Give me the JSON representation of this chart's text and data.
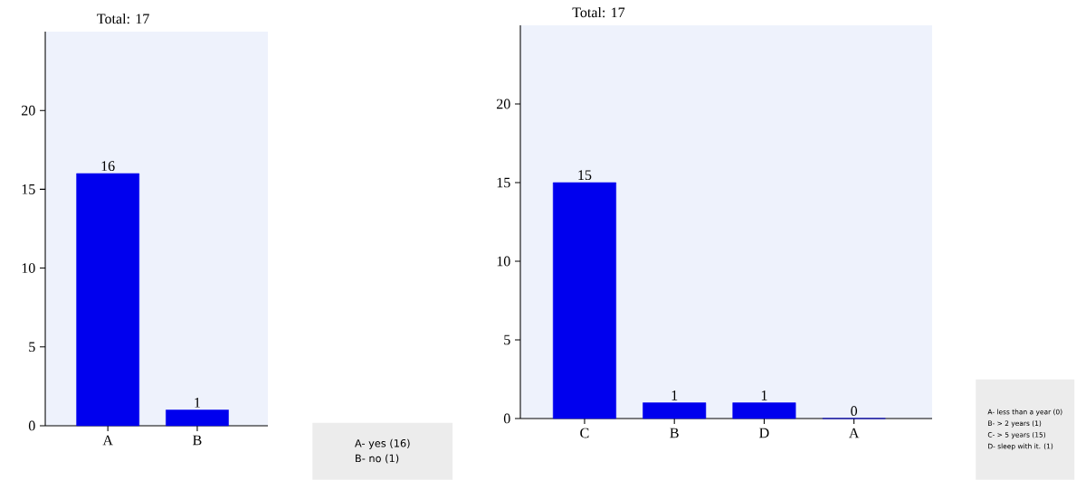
{
  "chart_data": [
    {
      "type": "bar",
      "title": "Total: 17",
      "categories": [
        "A",
        "B"
      ],
      "values": [
        16,
        1
      ],
      "color": "#0000ee",
      "ylim": [
        0,
        25
      ],
      "yticks": [
        0,
        5,
        10,
        15,
        20
      ],
      "data_labels": true,
      "annotations": [
        "A- yes (16)",
        "B- no (1)"
      ]
    },
    {
      "type": "bar",
      "title": "Total: 17",
      "categories": [
        "C",
        "B",
        "D",
        "A"
      ],
      "values": [
        15,
        1,
        1,
        0
      ],
      "color": "#0000ee",
      "ylim": [
        0,
        25
      ],
      "yticks": [
        0,
        5,
        10,
        15,
        20
      ],
      "data_labels": true,
      "annotations": [
        "A- less than a year (0)",
        "B- > 2 years (1)",
        "C- > 5 years (15)",
        "D- sleep with it. (1)"
      ]
    }
  ]
}
